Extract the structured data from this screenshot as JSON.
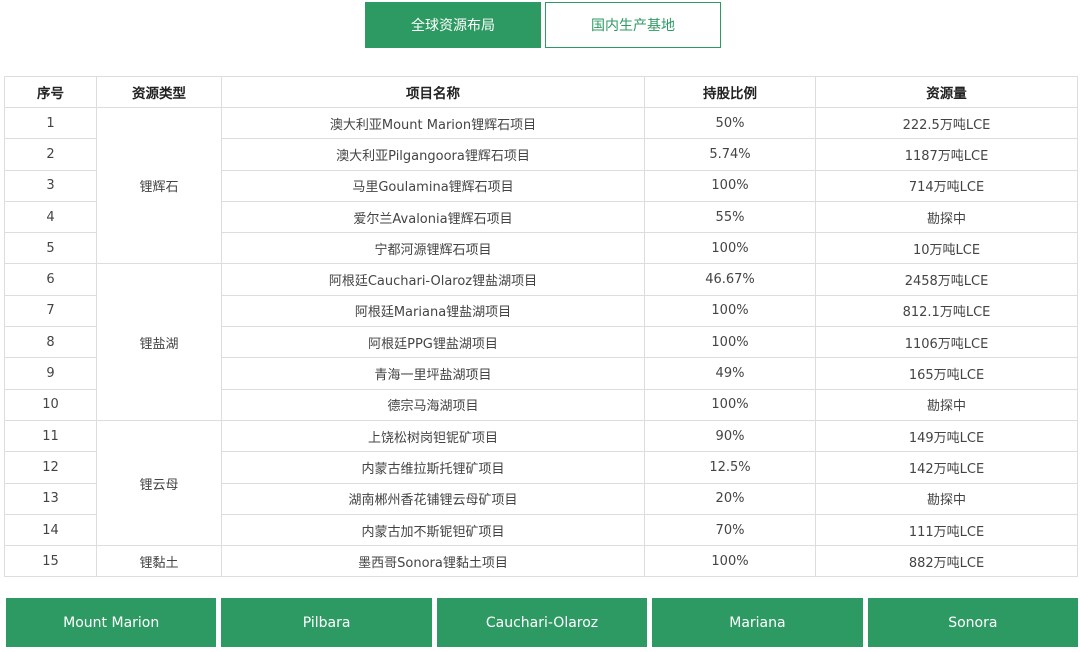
{
  "tabs": [
    {
      "label": "全球资源布局",
      "active": true
    },
    {
      "label": "国内生产基地",
      "active": false
    }
  ],
  "table": {
    "headers": [
      "序号",
      "资源类型",
      "项目名称",
      "持股比例",
      "资源量"
    ],
    "groups": [
      {
        "type": "锂辉石",
        "rows": [
          [
            "1",
            "澳大利亚Mount Marion锂辉石项目",
            "50%",
            "222.5万吨LCE"
          ],
          [
            "2",
            "澳大利亚Pilgangoora锂辉石项目",
            "5.74%",
            "1187万吨LCE"
          ],
          [
            "3",
            "马里Goulamina锂辉石项目",
            "100%",
            "714万吨LCE"
          ],
          [
            "4",
            "爱尔兰Avalonia锂辉石项目",
            "55%",
            "勘探中"
          ],
          [
            "5",
            "宁都河源锂辉石项目",
            "100%",
            "10万吨LCE"
          ]
        ]
      },
      {
        "type": "锂盐湖",
        "rows": [
          [
            "6",
            "阿根廷Cauchari-Olaroz锂盐湖项目",
            "46.67%",
            "2458万吨LCE"
          ],
          [
            "7",
            "阿根廷Mariana锂盐湖项目",
            "100%",
            "812.1万吨LCE"
          ],
          [
            "8",
            "阿根廷PPG锂盐湖项目",
            "100%",
            "1106万吨LCE"
          ],
          [
            "9",
            "青海一里坪盐湖项目",
            "49%",
            "165万吨LCE"
          ],
          [
            "10",
            "德宗马海湖项目",
            "100%",
            "勘探中"
          ]
        ]
      },
      {
        "type": "锂云母",
        "rows": [
          [
            "11",
            "上饶松树岗钽铌矿项目",
            "90%",
            "149万吨LCE"
          ],
          [
            "12",
            "内蒙古维拉斯托锂矿项目",
            "12.5%",
            "142万吨LCE"
          ],
          [
            "13",
            "湖南郴州香花铺锂云母矿项目",
            "20%",
            "勘探中"
          ],
          [
            "14",
            "内蒙古加不斯铌钽矿项目",
            "70%",
            "111万吨LCE"
          ]
        ]
      },
      {
        "type": "锂黏土",
        "rows": [
          [
            "15",
            "墨西哥Sonora锂黏土项目",
            "100%",
            "882万吨LCE"
          ]
        ]
      }
    ]
  },
  "buttons": [
    "Mount Marion",
    "Pilbara",
    "Cauchari-Olaroz",
    "Mariana",
    "Sonora"
  ],
  "colors": {
    "accent": "#2e9a63",
    "border": "#dddddd"
  }
}
